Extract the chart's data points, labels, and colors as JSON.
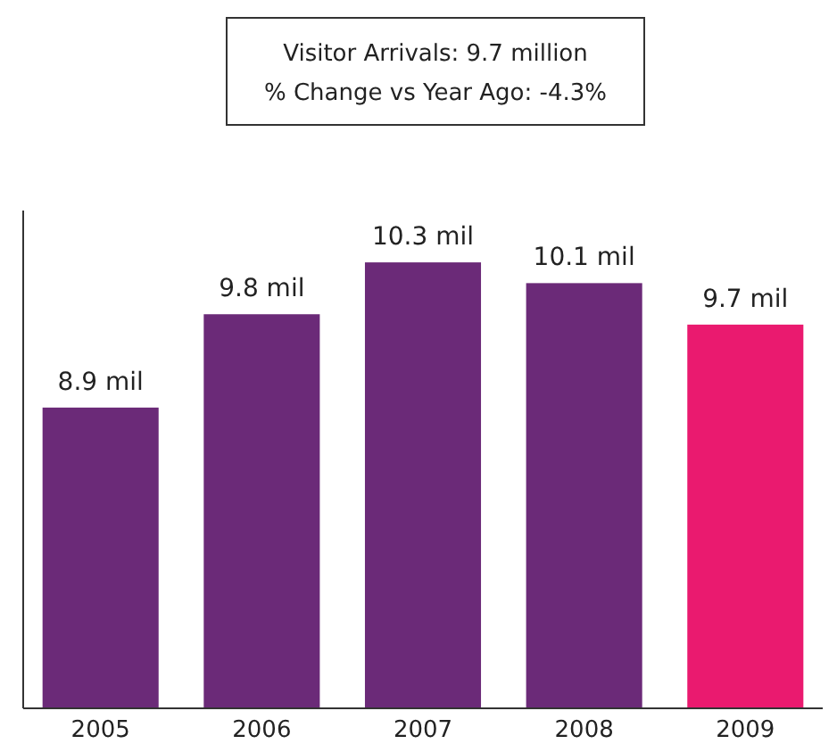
{
  "chart_data": {
    "type": "bar",
    "title": "Visitor Arrivals: 9.7 million",
    "subtitle": "% Change vs Year Ago: -4.3%",
    "categories": [
      "2005",
      "2006",
      "2007",
      "2008",
      "2009"
    ],
    "values": [
      8.9,
      9.8,
      10.3,
      10.1,
      9.7
    ],
    "colors": [
      "#6b2a78",
      "#6b2a78",
      "#6b2a78",
      "#6b2a78",
      "#ea1a6f"
    ],
    "value_labels": [
      "8.9 mil",
      "9.8 mil",
      "10.3 mil",
      "10.1 mil",
      "9.7 mil"
    ],
    "ylim": [
      6,
      10.8
    ],
    "tick_labels": "x"
  }
}
